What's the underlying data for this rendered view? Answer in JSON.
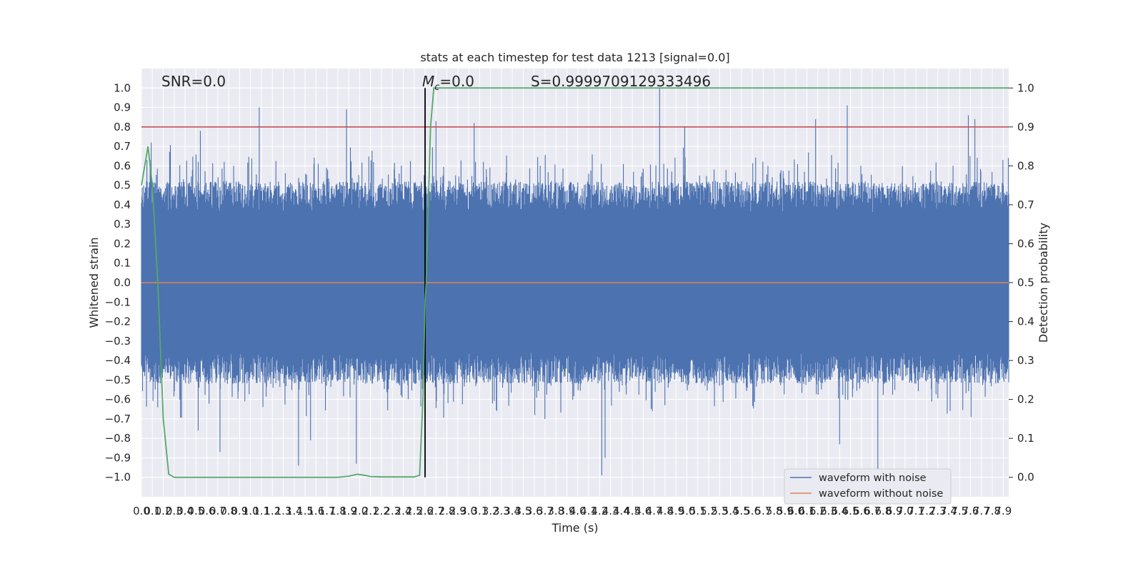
{
  "chart_data": {
    "type": "line",
    "title": "stats at each timestep for test data 1213 [signal=0.0]",
    "xlabel": "Time (s)",
    "ylabel_left": "Whitened strain",
    "ylabel_right": "Detection probability",
    "xlim": [
      0.0,
      7.95
    ],
    "ylim_left": [
      -1.1,
      1.1
    ],
    "ylim_right": [
      -0.05,
      1.05
    ],
    "x_ticks": [
      0.0,
      0.1,
      0.2,
      0.3,
      0.4,
      0.5,
      0.6,
      0.7,
      0.8,
      0.9,
      1.0,
      1.1,
      1.2,
      1.3,
      1.4,
      1.5,
      1.6,
      1.7,
      1.8,
      1.9,
      2.0,
      2.1,
      2.2,
      2.3,
      2.4,
      2.5,
      2.6,
      2.7,
      2.8,
      2.9,
      3.0,
      3.1,
      3.2,
      3.3,
      3.4,
      3.5,
      3.6,
      3.7,
      3.8,
      3.9,
      4.0,
      4.1,
      4.2,
      4.3,
      4.4,
      4.5,
      4.6,
      4.7,
      4.8,
      4.9,
      5.0,
      5.1,
      5.2,
      5.3,
      5.4,
      5.5,
      5.6,
      5.7,
      5.8,
      5.9,
      6.0,
      6.1,
      6.2,
      6.3,
      6.4,
      6.5,
      6.6,
      6.7,
      6.8,
      6.9,
      7.0,
      7.1,
      7.2,
      7.3,
      7.4,
      7.5,
      7.6,
      7.7,
      7.8,
      7.9
    ],
    "y_ticks_left": [
      -1.0,
      -0.9,
      -0.8,
      -0.7,
      -0.6,
      -0.5,
      -0.4,
      -0.3,
      -0.2,
      -0.1,
      0.0,
      0.1,
      0.2,
      0.3,
      0.4,
      0.5,
      0.6,
      0.7,
      0.8,
      0.9,
      1.0
    ],
    "y_ticks_right": [
      0.0,
      0.1,
      0.2,
      0.3,
      0.4,
      0.5,
      0.6,
      0.7,
      0.8,
      0.9,
      1.0
    ],
    "grid": true,
    "legend_position": "lower-right",
    "series": [
      {
        "name": "waveform with noise",
        "axis": "left",
        "color": "#4c72b0",
        "rendering": "dense noisy trace filling approx -0.55 to 0.55 with spikes up to +1.0 and down to -1.0",
        "notable_peaks": [
          [
            0.05,
            0.63
          ],
          [
            0.09,
            0.72
          ],
          [
            0.54,
            0.78
          ],
          [
            1.08,
            0.9
          ],
          [
            1.88,
            0.89
          ],
          [
            2.7,
            0.83
          ],
          [
            3.05,
            0.82
          ],
          [
            4.75,
            1.0
          ],
          [
            4.98,
            0.8
          ],
          [
            6.18,
            0.84
          ],
          [
            6.47,
            0.91
          ],
          [
            7.58,
            0.86
          ],
          [
            7.64,
            0.84
          ]
        ],
        "notable_troughs": [
          [
            0.52,
            -0.76
          ],
          [
            0.72,
            -0.87
          ],
          [
            1.44,
            -0.94
          ],
          [
            1.55,
            -0.81
          ],
          [
            1.97,
            -0.93
          ],
          [
            4.22,
            -0.99
          ],
          [
            4.25,
            -0.9
          ],
          [
            6.4,
            -0.83
          ],
          [
            6.75,
            -0.96
          ]
        ]
      },
      {
        "name": "waveform without noise",
        "axis": "left",
        "color": "#dd8452",
        "values_description": "flat at zero",
        "x": [
          0.0,
          7.95
        ],
        "y": [
          0.0,
          0.0
        ]
      },
      {
        "name": "detection probability",
        "axis": "right",
        "color": "#55a868",
        "x": [
          0.0,
          0.03,
          0.06,
          0.1,
          0.15,
          0.2,
          0.25,
          0.3,
          0.5,
          1.0,
          1.5,
          1.8,
          1.9,
          1.98,
          2.05,
          2.1,
          2.2,
          2.5,
          2.55,
          2.58,
          2.6,
          2.61,
          2.63,
          2.65,
          2.68,
          7.95
        ],
        "y": [
          0.75,
          0.8,
          0.85,
          0.75,
          0.5,
          0.15,
          0.008,
          0.0,
          0.0,
          0.0,
          0.0,
          0.0,
          0.003,
          0.008,
          0.005,
          0.002,
          0.001,
          0.001,
          0.005,
          0.2,
          0.45,
          0.5,
          0.7,
          0.9,
          1.0,
          1.0
        ]
      }
    ],
    "reference_lines": [
      {
        "type": "horizontal",
        "axis": "right",
        "value": 0.9,
        "color": "#c44e52"
      },
      {
        "type": "vertical",
        "x": 2.6,
        "y_range": [
          -1.0,
          1.0
        ],
        "color": "#000000"
      }
    ],
    "annotations": [
      {
        "id": "snr",
        "text": "SNR=0.0"
      },
      {
        "id": "mc",
        "symbol": "M",
        "subscript": "c",
        "text": "=0.0"
      },
      {
        "id": "s",
        "text": "S=0.9999709129333496"
      }
    ]
  }
}
